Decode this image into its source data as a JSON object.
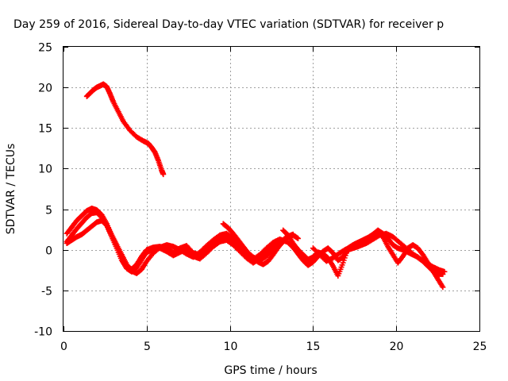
{
  "chart_data": {
    "type": "scatter",
    "title": "Day 259 of 2016, Sidereal Day-to-day VTEC variation (SDTVAR) for receiver p",
    "xlabel": "GPS time / hours",
    "ylabel": "SDTVAR / TECUs",
    "xlim": [
      0,
      25
    ],
    "ylim": [
      -10,
      25
    ],
    "xticks": [
      0,
      5,
      10,
      15,
      20,
      25
    ],
    "yticks": [
      -10,
      -5,
      0,
      5,
      10,
      15,
      20,
      25
    ],
    "grid": true,
    "marker": "+",
    "color": "#ff0000",
    "series": [
      {
        "name": "track-high",
        "x": [
          1.4,
          1.6,
          1.8,
          2.0,
          2.2,
          2.4,
          2.6,
          2.8,
          3.0,
          3.3,
          3.6,
          4.0,
          4.4,
          4.8,
          5.1,
          5.3,
          5.5,
          5.7,
          5.9,
          6.0
        ],
        "y": [
          18.9,
          19.3,
          19.7,
          20.0,
          20.2,
          20.4,
          20.1,
          19.2,
          18.2,
          17.0,
          15.8,
          14.7,
          13.9,
          13.4,
          13.1,
          12.6,
          12.0,
          11.0,
          9.8,
          9.3
        ]
      },
      {
        "name": "track-a",
        "x": [
          0.2,
          0.5,
          0.8,
          1.1,
          1.4,
          1.7,
          2.0,
          2.3,
          2.6,
          2.9,
          3.2,
          3.5,
          3.8,
          4.1,
          4.4,
          4.7,
          5.0,
          5.4,
          5.8,
          6.2,
          6.6,
          7.0,
          7.4,
          7.8,
          8.2,
          8.6,
          9.0,
          9.4,
          9.8,
          10.2,
          10.6,
          11.0,
          11.4,
          11.8,
          12.2,
          12.6,
          13.0,
          13.4
        ],
        "y": [
          2.0,
          2.8,
          3.6,
          4.2,
          4.8,
          5.1,
          4.9,
          4.3,
          3.2,
          1.8,
          0.4,
          -1.0,
          -2.0,
          -2.4,
          -1.8,
          -0.8,
          0.0,
          0.3,
          0.4,
          0.1,
          -0.3,
          0.2,
          0.5,
          -0.4,
          -0.6,
          0.2,
          0.9,
          1.4,
          1.6,
          1.0,
          0.2,
          -0.6,
          -1.2,
          -0.6,
          0.2,
          0.9,
          1.3,
          1.0
        ]
      },
      {
        "name": "track-b",
        "x": [
          0.2,
          0.5,
          0.8,
          1.1,
          1.4,
          1.7,
          2.0,
          2.3,
          2.6,
          2.9,
          3.2,
          3.5,
          3.8,
          4.1,
          4.4,
          4.7,
          5.0,
          5.4,
          5.8,
          6.2,
          6.6,
          7.0,
          7.4,
          7.8,
          8.2,
          8.6,
          9.0,
          9.4,
          9.8,
          10.2,
          10.6,
          11.0,
          11.4,
          11.8,
          12.2,
          12.6,
          13.0
        ],
        "y": [
          1.0,
          1.8,
          2.6,
          3.3,
          4.0,
          4.5,
          4.6,
          4.0,
          3.0,
          1.6,
          0.2,
          -1.3,
          -2.3,
          -2.7,
          -2.2,
          -1.2,
          -0.3,
          0.0,
          0.2,
          -0.2,
          -0.7,
          -0.3,
          0.1,
          -0.8,
          -1.1,
          -0.4,
          0.4,
          1.0,
          1.2,
          0.6,
          -0.2,
          -1.0,
          -1.6,
          -1.1,
          -0.3,
          0.4,
          0.9
        ]
      },
      {
        "name": "track-c",
        "x": [
          0.2,
          0.5,
          0.8,
          1.1,
          1.4,
          1.7,
          2.0,
          2.3,
          2.6,
          2.9,
          3.2,
          3.5,
          3.8,
          4.1,
          4.4,
          4.7,
          5.0,
          5.4,
          5.8,
          6.2,
          6.6,
          7.0,
          7.4,
          7.8,
          8.2,
          8.6,
          9.0,
          9.4,
          9.8,
          10.2,
          10.6,
          11.0,
          11.4,
          11.8,
          12.2,
          12.6,
          13.0,
          13.4,
          13.8
        ],
        "y": [
          0.8,
          1.2,
          1.6,
          1.9,
          2.4,
          2.9,
          3.4,
          3.6,
          3.0,
          1.8,
          0.6,
          -0.6,
          -1.8,
          -2.6,
          -2.9,
          -2.4,
          -1.4,
          -0.4,
          0.3,
          0.6,
          0.4,
          0.0,
          -0.5,
          -0.9,
          -0.3,
          0.5,
          1.2,
          1.8,
          2.0,
          1.4,
          0.6,
          -0.2,
          -0.9,
          -1.3,
          -0.8,
          0.0,
          0.8,
          1.6,
          1.9
        ]
      },
      {
        "name": "track-d",
        "x": [
          9.6,
          9.9,
          10.2,
          10.5,
          10.8,
          11.1,
          11.4,
          11.7,
          12.0,
          12.3,
          12.6,
          12.9,
          13.2,
          13.5,
          13.8,
          14.1
        ],
        "y": [
          3.2,
          2.7,
          2.0,
          1.2,
          0.4,
          -0.4,
          -1.0,
          -1.5,
          -1.8,
          -1.4,
          -0.6,
          0.3,
          1.0,
          1.6,
          1.8,
          1.4
        ]
      },
      {
        "name": "track-e",
        "x": [
          13.2,
          13.5,
          13.8,
          14.1,
          14.4,
          14.7,
          15.0,
          15.3,
          15.6,
          15.9,
          16.2,
          16.5,
          16.8,
          17.1,
          17.4,
          17.7,
          18.0,
          18.3,
          18.6,
          18.9,
          19.2,
          19.5,
          19.8,
          20.1,
          20.4,
          20.7,
          21.0,
          21.3,
          21.6,
          21.9,
          22.2,
          22.5,
          22.8
        ],
        "y": [
          2.4,
          1.8,
          0.8,
          0.0,
          -0.6,
          -1.2,
          -0.9,
          -0.3,
          -0.5,
          -1.0,
          -2.0,
          -3.2,
          -1.6,
          0.2,
          0.6,
          0.9,
          1.2,
          1.5,
          1.9,
          2.4,
          2.0,
          1.4,
          0.6,
          0.2,
          0.0,
          -0.3,
          -0.6,
          -0.9,
          -1.4,
          -2.0,
          -2.6,
          -3.0,
          -3.0
        ]
      },
      {
        "name": "track-f",
        "x": [
          13.5,
          13.8,
          14.1,
          14.4,
          14.7,
          15.0,
          15.3,
          15.6,
          15.9,
          16.2,
          16.5,
          16.8,
          17.1,
          17.4,
          17.7,
          18.0,
          18.3,
          18.6,
          18.9,
          19.2,
          19.5,
          19.8,
          20.1,
          20.4,
          20.7,
          21.0,
          21.3,
          21.6,
          21.9,
          22.2,
          22.5,
          22.8
        ],
        "y": [
          0.9,
          0.3,
          -0.5,
          -1.3,
          -1.9,
          -1.5,
          -0.8,
          -0.2,
          0.2,
          -0.4,
          -1.3,
          -0.9,
          0.0,
          0.2,
          0.4,
          0.7,
          1.1,
          1.6,
          2.1,
          1.6,
          0.4,
          -0.6,
          -1.6,
          -0.8,
          0.2,
          0.6,
          0.2,
          -0.6,
          -1.6,
          -2.6,
          -3.6,
          -4.6
        ]
      },
      {
        "name": "track-g",
        "x": [
          15.0,
          15.4,
          15.8,
          16.2,
          16.6,
          17.0,
          17.4,
          17.8,
          18.2,
          18.6,
          19.0,
          19.4,
          19.8,
          20.2,
          20.6,
          21.0,
          21.4,
          21.8,
          22.2,
          22.6,
          22.9
        ],
        "y": [
          0.2,
          -0.6,
          -1.4,
          -1.0,
          -0.4,
          0.1,
          0.3,
          0.5,
          0.8,
          1.3,
          1.8,
          2.0,
          1.6,
          0.9,
          0.2,
          -0.5,
          -1.1,
          -1.6,
          -2.1,
          -2.5,
          -2.7
        ]
      }
    ]
  }
}
